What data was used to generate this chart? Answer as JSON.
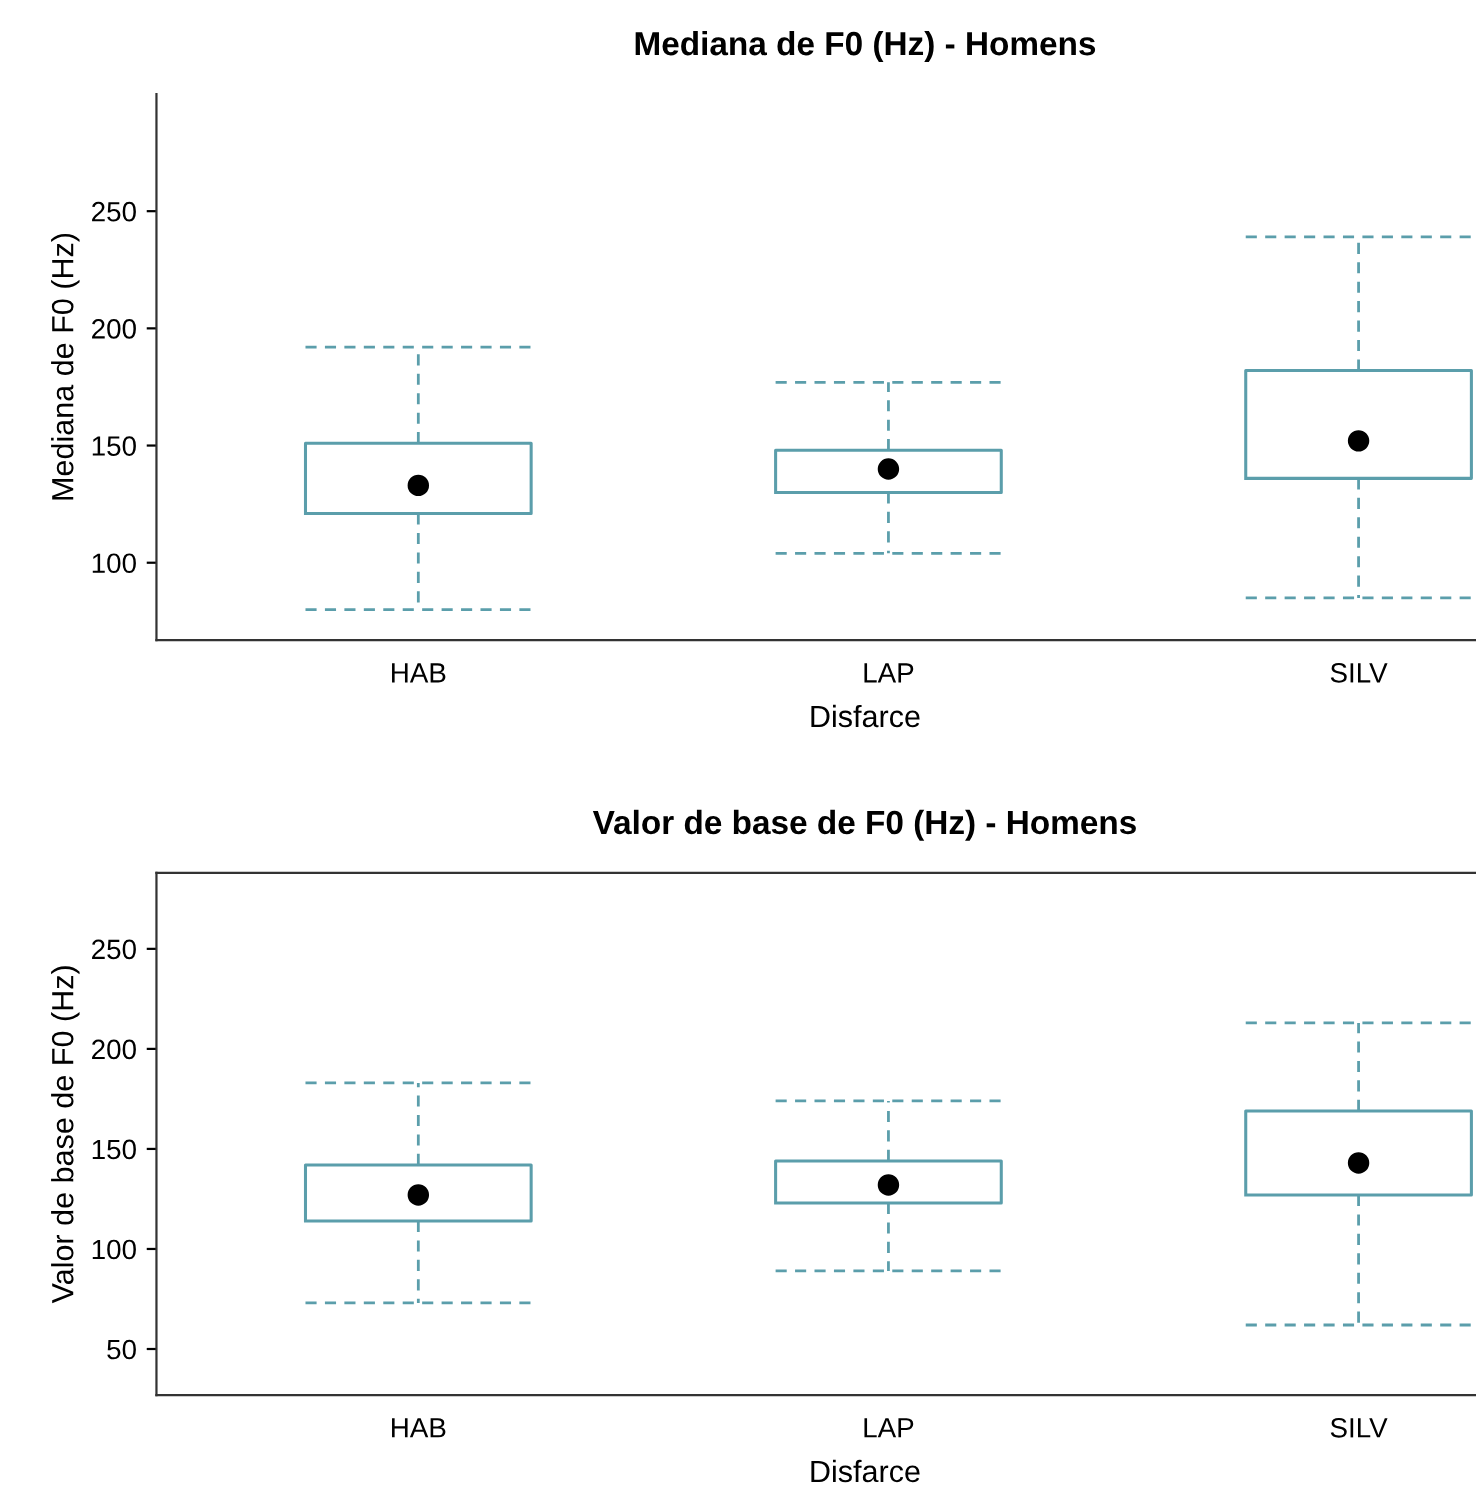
{
  "chart_data": [
    {
      "type": "box",
      "title": "Mediana de F0 (Hz) - Homens",
      "xlabel": "Disfarce",
      "ylabel": "Mediana de F0 (Hz)",
      "categories": [
        "HAB",
        "LAP",
        "SILV"
      ],
      "color": "#5b9eab",
      "ylim": [
        67,
        300
      ],
      "yticks": [
        100,
        150,
        200,
        250
      ],
      "grid": false,
      "legend": false,
      "boxes": [
        {
          "low": 80,
          "q1": 121,
          "median": 133,
          "q3": 151,
          "high": 192
        },
        {
          "low": 104,
          "q1": 130,
          "median": 140,
          "q3": 148,
          "high": 177
        },
        {
          "low": 85,
          "q1": 136,
          "median": 152,
          "q3": 182,
          "high": 239
        }
      ]
    },
    {
      "type": "box",
      "title": "Valor de base de F0 (Hz) - Homens",
      "xlabel": "Disfarce",
      "ylabel": "Valor de base de F0 (Hz)",
      "categories": [
        "HAB",
        "LAP",
        "SILV"
      ],
      "color": "#5b9eab",
      "ylim": [
        27,
        288
      ],
      "yticks": [
        50,
        100,
        150,
        200,
        250
      ],
      "grid": false,
      "legend": false,
      "boxes": [
        {
          "low": 73,
          "q1": 114,
          "median": 127,
          "q3": 142,
          "high": 183
        },
        {
          "low": 89,
          "q1": 123,
          "median": 132,
          "q3": 144,
          "high": 174
        },
        {
          "low": 62,
          "q1": 127,
          "median": 143,
          "q3": 169,
          "high": 213
        }
      ]
    }
  ]
}
